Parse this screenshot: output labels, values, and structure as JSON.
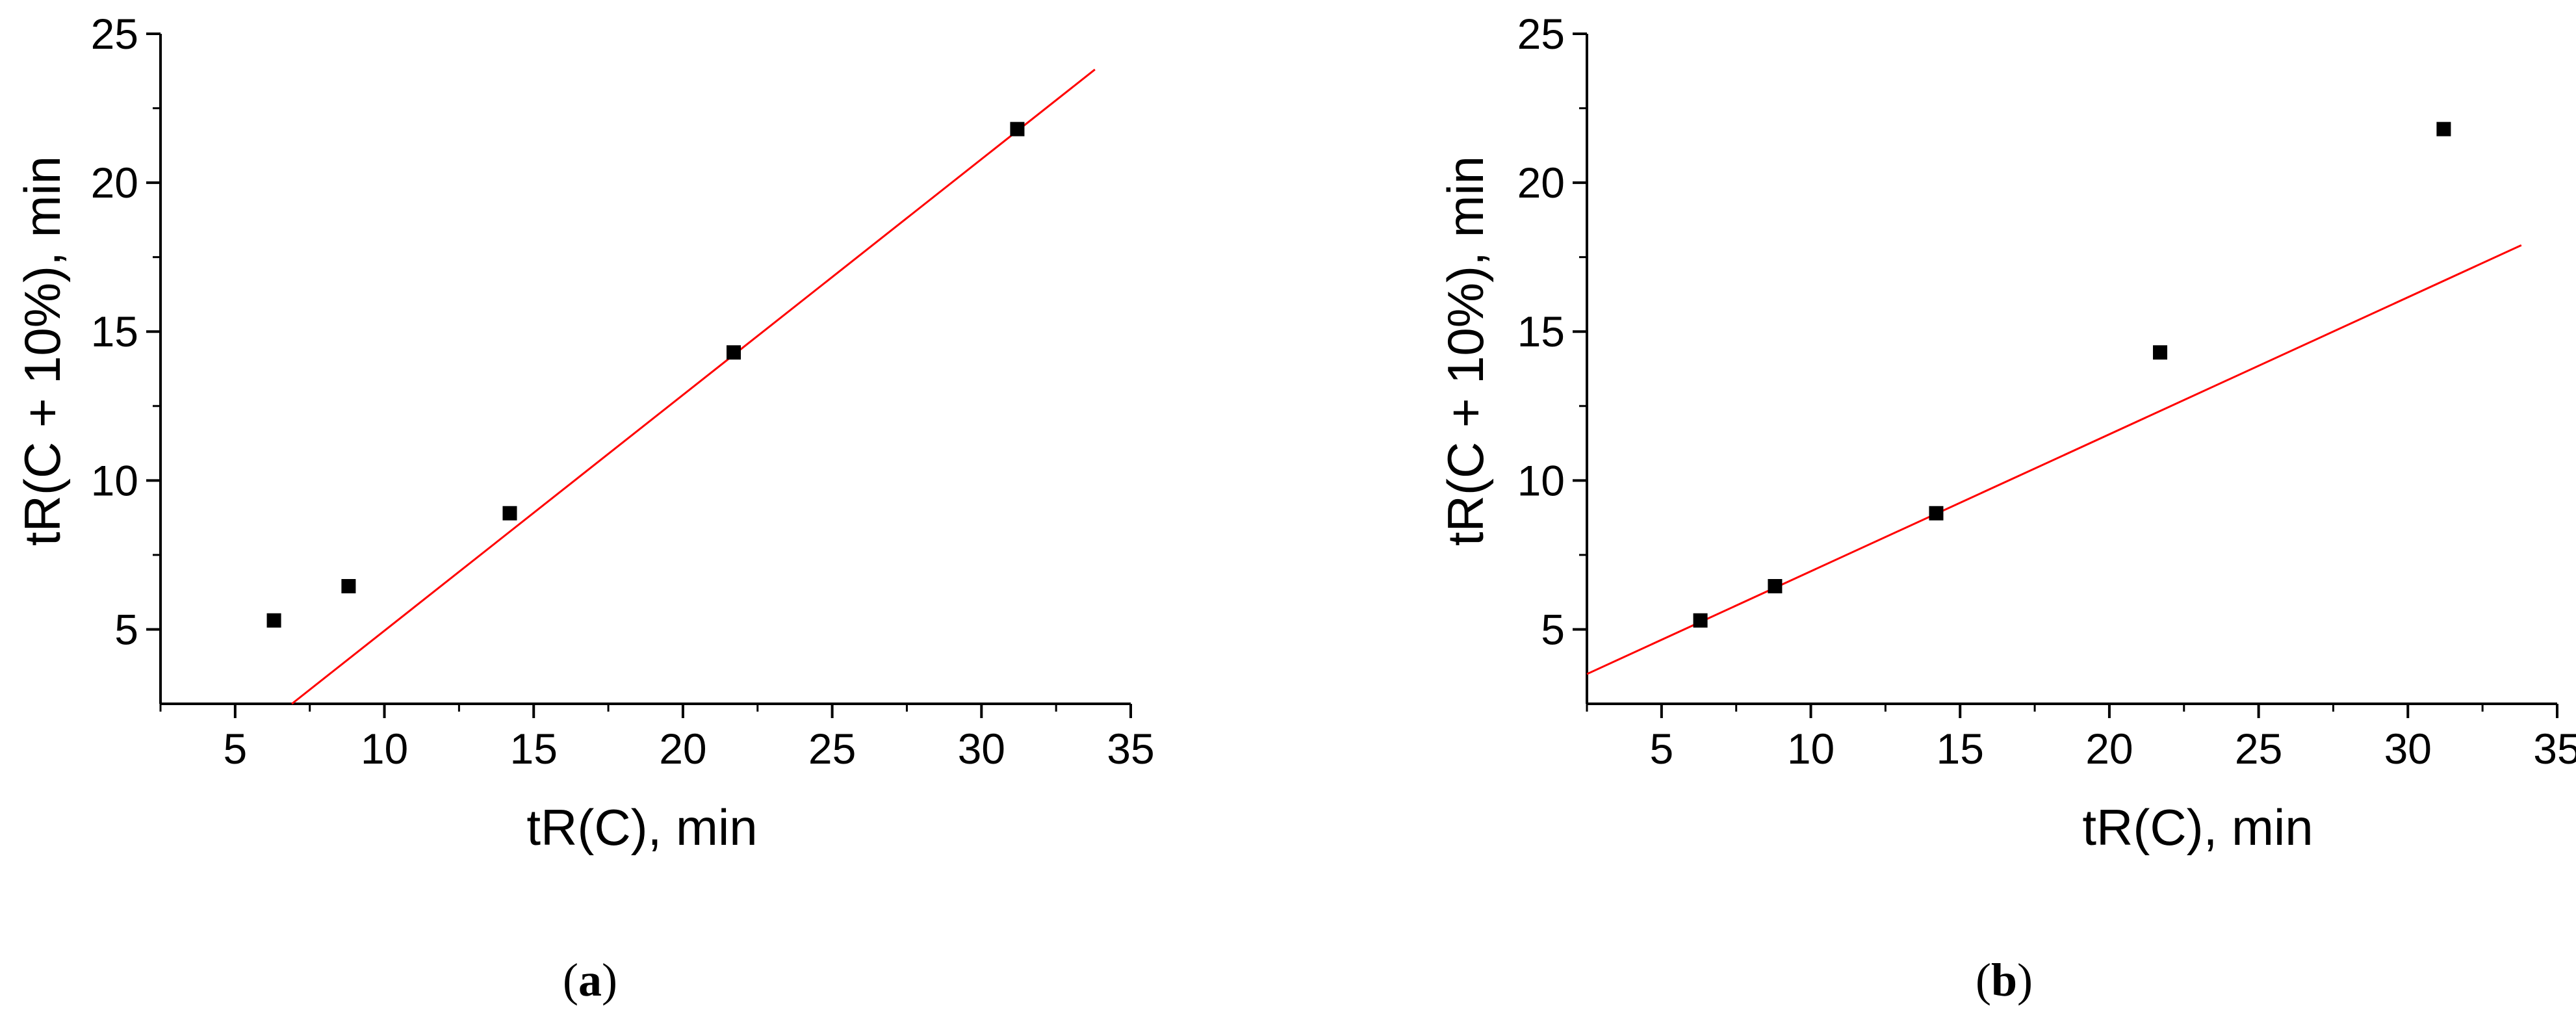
{
  "figure": {
    "panels": [
      {
        "label_open": "(",
        "label_letter": "a",
        "label_close": ")"
      },
      {
        "label_open": "(",
        "label_letter": "b",
        "label_close": ")"
      }
    ]
  },
  "chart_data": [
    {
      "type": "scatter",
      "title": "",
      "xlabel": "tR(C), min",
      "ylabel": "tR(C + 10%), min",
      "xlim": [
        2.5,
        35
      ],
      "ylim": [
        2.5,
        25
      ],
      "xticks": [
        5,
        10,
        15,
        20,
        25,
        30,
        35
      ],
      "yticks": [
        5,
        10,
        15,
        20,
        25
      ],
      "grid": false,
      "series": [
        {
          "points": [
            [
              6.3,
              5.3
            ],
            [
              8.8,
              6.45
            ],
            [
              14.2,
              8.9
            ],
            [
              21.7,
              14.3
            ],
            [
              31.2,
              21.8
            ]
          ],
          "color": "#000000",
          "marker": "square"
        }
      ],
      "fit_line": {
        "x": [
          6.9,
          33.8
        ],
        "y": [
          2.5,
          23.8
        ],
        "color": "#ff0000"
      }
    },
    {
      "type": "scatter",
      "title": "",
      "xlabel": "tR(C), min",
      "ylabel": "tR(C + 10%), min",
      "xlim": [
        2.5,
        35
      ],
      "ylim": [
        2.5,
        25
      ],
      "xticks": [
        5,
        10,
        15,
        20,
        25,
        30,
        35
      ],
      "yticks": [
        5,
        10,
        15,
        20,
        25
      ],
      "grid": false,
      "series": [
        {
          "points": [
            [
              6.3,
              5.3
            ],
            [
              8.8,
              6.45
            ],
            [
              14.2,
              8.9
            ],
            [
              21.7,
              14.3
            ],
            [
              31.2,
              21.8
            ]
          ],
          "color": "#000000",
          "marker": "square"
        }
      ],
      "fit_line": {
        "x": [
          2.5,
          33.8
        ],
        "y": [
          3.5,
          17.9
        ],
        "color": "#ff0000"
      }
    }
  ]
}
